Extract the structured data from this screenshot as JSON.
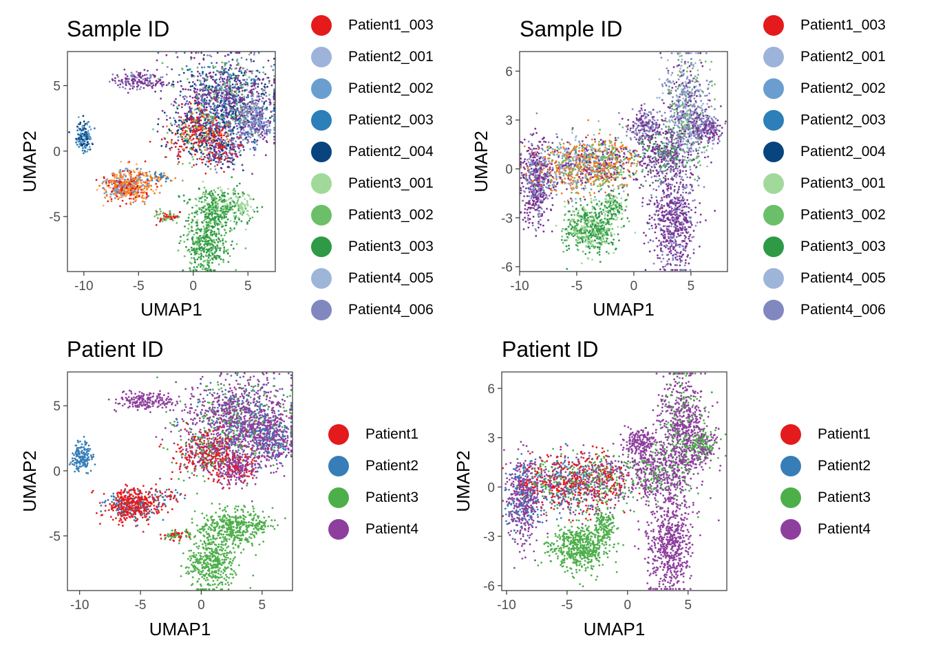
{
  "chart_data": [
    {
      "type": "scatter",
      "title": "Sample ID",
      "xlabel": "UMAP1",
      "ylabel": "UMAP2",
      "xlim": [
        -11.5,
        7.5
      ],
      "ylim": [
        -9.2,
        7.6
      ],
      "xticks": [
        -10,
        -5,
        0,
        5
      ],
      "yticks": [
        -5,
        0,
        5
      ],
      "legend_position": "right",
      "grid": false,
      "series": [
        {
          "name": "Patient1_003",
          "color": "#E41A1C"
        },
        {
          "name": "Patient2_001",
          "color": "#9EB3D9"
        },
        {
          "name": "Patient2_002",
          "color": "#6A9ECF"
        },
        {
          "name": "Patient2_003",
          "color": "#2C7FB8"
        },
        {
          "name": "Patient2_004",
          "color": "#08457E"
        },
        {
          "name": "Patient3_001",
          "color": "#A1D99B"
        },
        {
          "name": "Patient3_002",
          "color": "#6ABF68"
        },
        {
          "name": "Patient3_003",
          "color": "#2E9A45"
        },
        {
          "name": "Patient4_005",
          "color": "#9EB5DA"
        },
        {
          "name": "Patient4_006",
          "color": "#8088BF"
        },
        {
          "name": "",
          "color": "#7B3294"
        }
      ],
      "clusters": [
        {
          "x": -5.2,
          "y": 5.4,
          "sx": 1.2,
          "sy": 0.35,
          "n": 160,
          "colors": [
            "#7B3294",
            "#7B3294",
            "#8088BF"
          ]
        },
        {
          "x": -3.2,
          "y": 5.2,
          "sx": 0.3,
          "sy": 0.15,
          "n": 15,
          "colors": [
            "#7B3294"
          ]
        },
        {
          "x": 3.0,
          "y": 3.8,
          "sx": 2.3,
          "sy": 1.6,
          "n": 1300,
          "colors": [
            "#7B3294",
            "#7B3294",
            "#7B3294",
            "#8088BF",
            "#08457E",
            "#6ABF68",
            "#2C7FB8"
          ]
        },
        {
          "x": 5.5,
          "y": 2.2,
          "sx": 0.8,
          "sy": 0.9,
          "n": 250,
          "colors": [
            "#8088BF",
            "#8088BF",
            "#7B3294",
            "#6A9ECF"
          ]
        },
        {
          "x": 0.4,
          "y": 1.2,
          "sx": 1.4,
          "sy": 1.0,
          "n": 420,
          "colors": [
            "#E41A1C",
            "#E41A1C",
            "#F47C20",
            "#7B3294",
            "#6ABF68",
            "#08457E"
          ]
        },
        {
          "x": 2.6,
          "y": 0.2,
          "sx": 1.0,
          "sy": 0.7,
          "n": 260,
          "colors": [
            "#7B3294",
            "#E41A1C",
            "#8088BF",
            "#08457E"
          ]
        },
        {
          "x": -10.0,
          "y": 1.0,
          "sx": 0.4,
          "sy": 0.6,
          "n": 160,
          "colors": [
            "#08457E",
            "#2C7FB8",
            "#6A9ECF"
          ]
        },
        {
          "x": -6.0,
          "y": -2.6,
          "sx": 1.1,
          "sy": 0.6,
          "n": 520,
          "colors": [
            "#F47C20",
            "#F47C20",
            "#FDAE61",
            "#E41A1C",
            "#6A9ECF"
          ]
        },
        {
          "x": -3.0,
          "y": -2.0,
          "sx": 0.6,
          "sy": 0.25,
          "n": 40,
          "colors": [
            "#F47C20",
            "#2C7FB8"
          ]
        },
        {
          "x": -2.4,
          "y": -5.0,
          "sx": 0.6,
          "sy": 0.2,
          "n": 70,
          "colors": [
            "#E41A1C",
            "#6ABF68"
          ]
        },
        {
          "x": 2.5,
          "y": -4.3,
          "sx": 1.4,
          "sy": 0.7,
          "n": 380,
          "colors": [
            "#2E9A45",
            "#6ABF68",
            "#A1D99B",
            "#2E9A45"
          ]
        },
        {
          "x": 1.3,
          "y": -7.0,
          "sx": 1.0,
          "sy": 1.1,
          "n": 420,
          "colors": [
            "#2E9A45",
            "#2E9A45",
            "#6ABF68"
          ]
        },
        {
          "x": 4.6,
          "y": -4.2,
          "sx": 0.4,
          "sy": 0.3,
          "n": 40,
          "colors": [
            "#A1D99B"
          ]
        }
      ]
    },
    {
      "type": "scatter",
      "title": "Sample ID",
      "xlabel": "UMAP1",
      "ylabel": "UMAP2",
      "xlim": [
        -10,
        8.2
      ],
      "ylim": [
        -6.3,
        7.2
      ],
      "xticks": [
        -10,
        -5,
        0,
        5
      ],
      "yticks": [
        -6,
        -3,
        0,
        3,
        6
      ],
      "legend_position": "right",
      "grid": false,
      "series": [
        {
          "name": "Patient1_003",
          "color": "#E41A1C"
        },
        {
          "name": "Patient2_001",
          "color": "#9EB3D9"
        },
        {
          "name": "Patient2_002",
          "color": "#6A9ECF"
        },
        {
          "name": "Patient2_003",
          "color": "#2C7FB8"
        },
        {
          "name": "Patient2_004",
          "color": "#08457E"
        },
        {
          "name": "Patient3_001",
          "color": "#A1D99B"
        },
        {
          "name": "Patient3_002",
          "color": "#6ABF68"
        },
        {
          "name": "Patient3_003",
          "color": "#2E9A45"
        },
        {
          "name": "Patient4_005",
          "color": "#9EB5DA"
        },
        {
          "name": "Patient4_006",
          "color": "#8088BF"
        },
        {
          "name": "",
          "color": "#7B3294"
        }
      ],
      "clusters": [
        {
          "x": -8.5,
          "y": -0.8,
          "sx": 0.7,
          "sy": 1.3,
          "n": 520,
          "colors": [
            "#7B3294",
            "#7B3294",
            "#8088BF"
          ]
        },
        {
          "x": -4.8,
          "y": 0.2,
          "sx": 1.9,
          "sy": 0.9,
          "n": 760,
          "colors": [
            "#F47C20",
            "#F47C20",
            "#9EB3D9",
            "#7B3294",
            "#6A9ECF",
            "#6ABF68"
          ]
        },
        {
          "x": -1.8,
          "y": 0.4,
          "sx": 1.1,
          "sy": 0.9,
          "n": 280,
          "colors": [
            "#F47C20",
            "#7B3294",
            "#6ABF68"
          ]
        },
        {
          "x": -3.8,
          "y": -3.7,
          "sx": 1.2,
          "sy": 0.7,
          "n": 520,
          "colors": [
            "#2E9A45",
            "#6ABF68",
            "#2E9A45",
            "#A1D99B"
          ]
        },
        {
          "x": -1.8,
          "y": -2.3,
          "sx": 0.5,
          "sy": 0.5,
          "n": 120,
          "colors": [
            "#2E9A45",
            "#A1D99B"
          ]
        },
        {
          "x": 4.5,
          "y": 3.2,
          "sx": 1.0,
          "sy": 1.8,
          "n": 780,
          "colors": [
            "#8088BF",
            "#8088BF",
            "#7B3294",
            "#9EB5DA",
            "#6ABF68"
          ]
        },
        {
          "x": 6.4,
          "y": 2.5,
          "sx": 0.7,
          "sy": 0.5,
          "n": 180,
          "colors": [
            "#7B3294",
            "#8088BF"
          ]
        },
        {
          "x": 2.3,
          "y": 0.8,
          "sx": 1.2,
          "sy": 0.9,
          "n": 380,
          "colors": [
            "#7B3294",
            "#7B3294",
            "#2E9A45",
            "#8088BF"
          ]
        },
        {
          "x": 3.5,
          "y": -3.4,
          "sx": 0.9,
          "sy": 1.5,
          "n": 600,
          "colors": [
            "#7B3294",
            "#7B3294",
            "#8088BF"
          ]
        },
        {
          "x": 1.0,
          "y": 2.6,
          "sx": 0.8,
          "sy": 0.5,
          "n": 180,
          "colors": [
            "#7B3294",
            "#8088BF"
          ]
        }
      ]
    },
    {
      "type": "scatter",
      "title": "Patient ID",
      "xlabel": "UMAP1",
      "ylabel": "UMAP2",
      "xlim": [
        -11,
        7.5
      ],
      "ylim": [
        -9.2,
        7.6
      ],
      "xticks": [
        -10,
        -5,
        0,
        5
      ],
      "yticks": [
        -5,
        0,
        5
      ],
      "legend_position": "right",
      "grid": false,
      "series": [
        {
          "name": "Patient1",
          "color": "#E41A1C"
        },
        {
          "name": "Patient2",
          "color": "#377EB8"
        },
        {
          "name": "Patient3",
          "color": "#4DAF4A"
        },
        {
          "name": "Patient4",
          "color": "#8E3F9E"
        }
      ],
      "clusters": [
        {
          "x": -4.8,
          "y": 5.4,
          "sx": 1.2,
          "sy": 0.35,
          "n": 160,
          "colors": [
            "#8E3F9E"
          ]
        },
        {
          "x": -2.8,
          "y": 5.2,
          "sx": 0.3,
          "sy": 0.15,
          "n": 15,
          "colors": [
            "#8E3F9E"
          ]
        },
        {
          "x": 3.2,
          "y": 3.8,
          "sx": 2.3,
          "sy": 1.6,
          "n": 1300,
          "colors": [
            "#8E3F9E",
            "#8E3F9E",
            "#8E3F9E",
            "#8E3F9E",
            "#377EB8",
            "#4DAF4A"
          ]
        },
        {
          "x": 5.8,
          "y": 2.2,
          "sx": 0.8,
          "sy": 0.9,
          "n": 250,
          "colors": [
            "#8E3F9E",
            "#8E3F9E",
            "#377EB8"
          ]
        },
        {
          "x": 0.6,
          "y": 1.2,
          "sx": 1.4,
          "sy": 1.0,
          "n": 420,
          "colors": [
            "#E41A1C",
            "#E41A1C",
            "#8E3F9E",
            "#4DAF4A"
          ]
        },
        {
          "x": 2.8,
          "y": 0.2,
          "sx": 1.0,
          "sy": 0.7,
          "n": 260,
          "colors": [
            "#8E3F9E",
            "#E41A1C",
            "#8E3F9E"
          ]
        },
        {
          "x": -9.8,
          "y": 1.0,
          "sx": 0.4,
          "sy": 0.6,
          "n": 160,
          "colors": [
            "#377EB8"
          ]
        },
        {
          "x": -5.6,
          "y": -2.6,
          "sx": 1.1,
          "sy": 0.6,
          "n": 520,
          "colors": [
            "#E41A1C",
            "#E41A1C",
            "#E41A1C",
            "#377EB8"
          ]
        },
        {
          "x": -2.6,
          "y": -2.0,
          "sx": 0.6,
          "sy": 0.25,
          "n": 40,
          "colors": [
            "#E41A1C",
            "#377EB8"
          ]
        },
        {
          "x": -2.0,
          "y": -5.0,
          "sx": 0.6,
          "sy": 0.2,
          "n": 70,
          "colors": [
            "#E41A1C",
            "#4DAF4A"
          ]
        },
        {
          "x": 2.6,
          "y": -4.3,
          "sx": 1.4,
          "sy": 0.7,
          "n": 380,
          "colors": [
            "#4DAF4A"
          ]
        },
        {
          "x": 1.0,
          "y": -7.0,
          "sx": 1.0,
          "sy": 1.1,
          "n": 420,
          "colors": [
            "#4DAF4A"
          ]
        },
        {
          "x": 4.8,
          "y": -4.2,
          "sx": 0.4,
          "sy": 0.3,
          "n": 40,
          "colors": [
            "#4DAF4A"
          ]
        }
      ]
    },
    {
      "type": "scatter",
      "title": "Patient ID",
      "xlabel": "UMAP1",
      "ylabel": "UMAP2",
      "xlim": [
        -10.4,
        8.2
      ],
      "ylim": [
        -6.3,
        7.0
      ],
      "xticks": [
        -10,
        -5,
        0,
        5
      ],
      "yticks": [
        -6,
        -3,
        0,
        3,
        6
      ],
      "legend_position": "right",
      "grid": false,
      "series": [
        {
          "name": "Patient1",
          "color": "#E41A1C"
        },
        {
          "name": "Patient2",
          "color": "#377EB8"
        },
        {
          "name": "Patient3",
          "color": "#4DAF4A"
        },
        {
          "name": "Patient4",
          "color": "#8E3F9E"
        }
      ],
      "clusters": [
        {
          "x": -8.6,
          "y": -0.8,
          "sx": 0.7,
          "sy": 1.3,
          "n": 520,
          "colors": [
            "#8E3F9E",
            "#8E3F9E",
            "#377EB8"
          ]
        },
        {
          "x": -4.9,
          "y": 0.2,
          "sx": 1.9,
          "sy": 0.9,
          "n": 760,
          "colors": [
            "#E41A1C",
            "#E41A1C",
            "#8E3F9E",
            "#377EB8",
            "#4DAF4A"
          ]
        },
        {
          "x": -1.9,
          "y": 0.4,
          "sx": 1.1,
          "sy": 0.9,
          "n": 280,
          "colors": [
            "#E41A1C",
            "#8E3F9E",
            "#4DAF4A"
          ]
        },
        {
          "x": -3.9,
          "y": -3.7,
          "sx": 1.2,
          "sy": 0.7,
          "n": 520,
          "colors": [
            "#4DAF4A"
          ]
        },
        {
          "x": -1.9,
          "y": -2.3,
          "sx": 0.5,
          "sy": 0.5,
          "n": 120,
          "colors": [
            "#4DAF4A"
          ]
        },
        {
          "x": 4.5,
          "y": 3.2,
          "sx": 1.0,
          "sy": 1.8,
          "n": 780,
          "colors": [
            "#8E3F9E",
            "#8E3F9E",
            "#8E3F9E",
            "#4DAF4A"
          ]
        },
        {
          "x": 6.4,
          "y": 2.5,
          "sx": 0.7,
          "sy": 0.5,
          "n": 180,
          "colors": [
            "#8E3F9E",
            "#4DAF4A"
          ]
        },
        {
          "x": 2.3,
          "y": 0.8,
          "sx": 1.2,
          "sy": 0.9,
          "n": 380,
          "colors": [
            "#8E3F9E",
            "#8E3F9E",
            "#4DAF4A"
          ]
        },
        {
          "x": 3.5,
          "y": -3.4,
          "sx": 0.9,
          "sy": 1.5,
          "n": 600,
          "colors": [
            "#8E3F9E"
          ]
        },
        {
          "x": 1.0,
          "y": 2.6,
          "sx": 0.8,
          "sy": 0.5,
          "n": 180,
          "colors": [
            "#8E3F9E"
          ]
        }
      ]
    }
  ]
}
